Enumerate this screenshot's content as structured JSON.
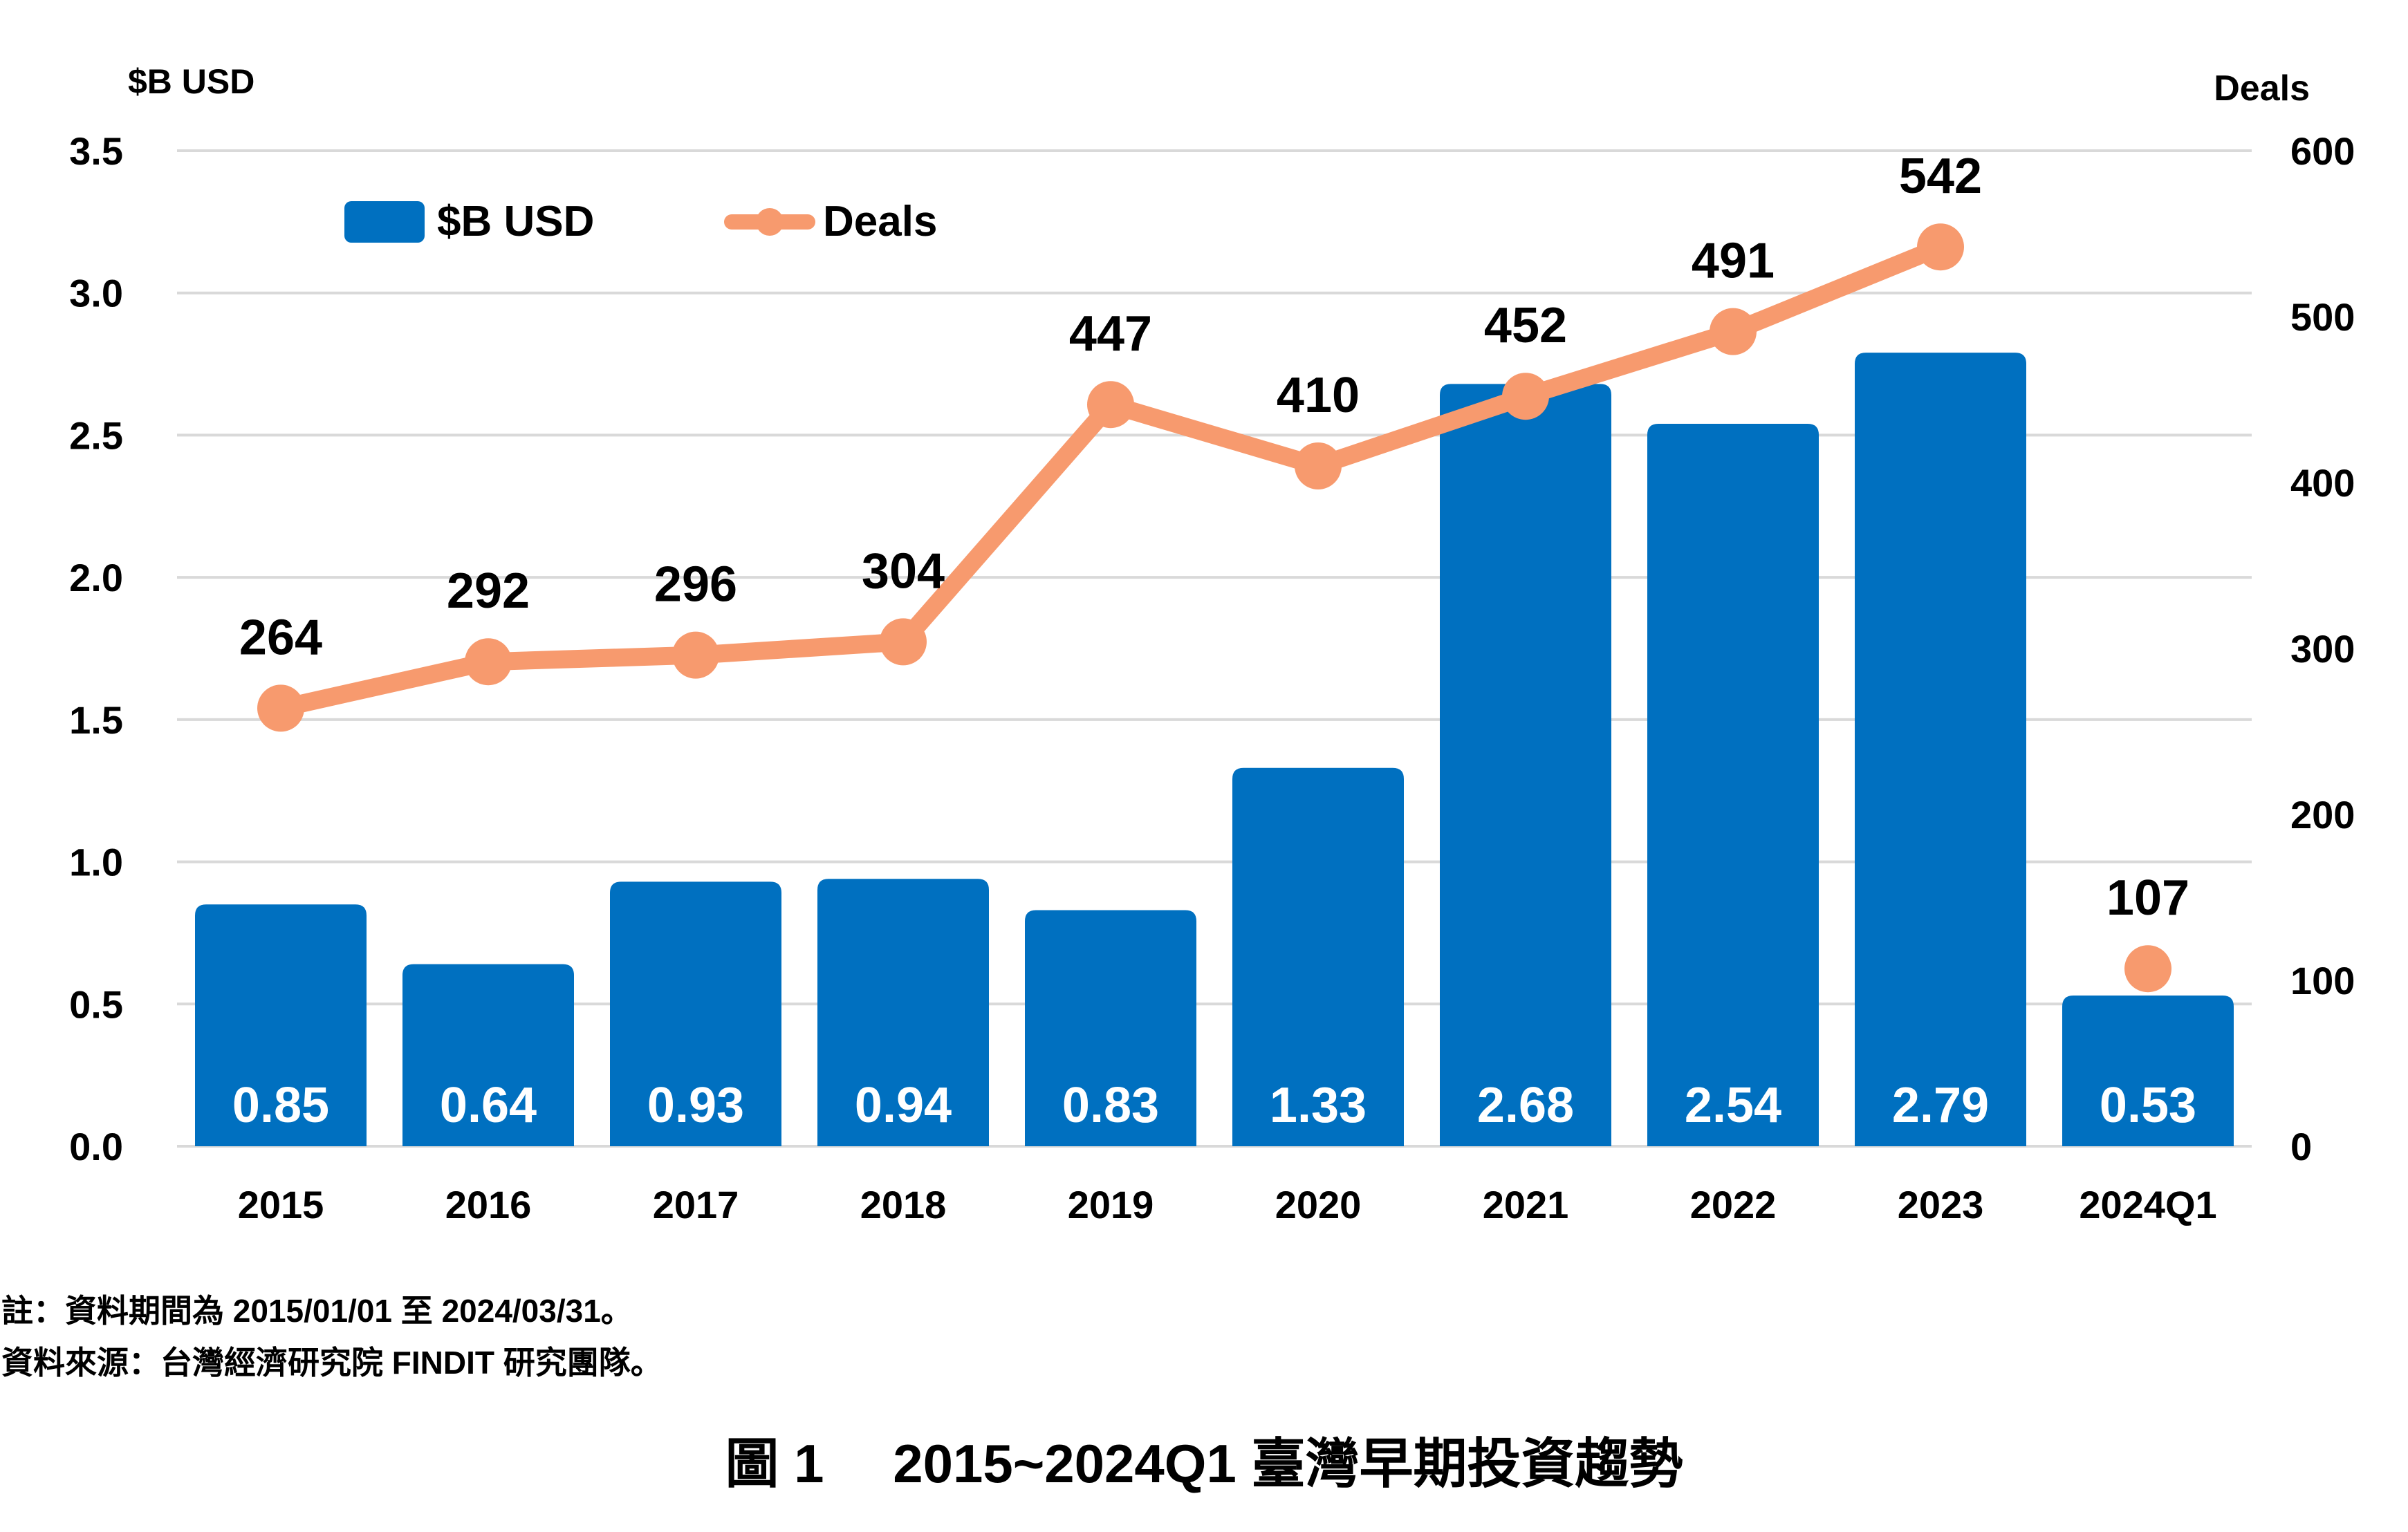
{
  "chart_data": {
    "type": "bar",
    "categories": [
      "2015",
      "2016",
      "2017",
      "2018",
      "2019",
      "2020",
      "2021",
      "2022",
      "2023",
      "2024Q1"
    ],
    "series": [
      {
        "name": "$B USD",
        "type": "bar",
        "axis": "left",
        "values": [
          0.85,
          0.64,
          0.93,
          0.94,
          0.83,
          1.33,
          2.68,
          2.54,
          2.79,
          0.53
        ],
        "labels": [
          "0.85",
          "0.64",
          "0.93",
          "0.94",
          "0.83",
          "1.33",
          "2.68",
          "2.54",
          "2.79",
          "0.53"
        ]
      },
      {
        "name": "Deals",
        "type": "line",
        "axis": "right",
        "values": [
          264,
          292,
          296,
          304,
          447,
          410,
          452,
          491,
          542,
          107
        ],
        "labels": [
          "264",
          "292",
          "296",
          "304",
          "447",
          "410",
          "452",
          "491",
          "542",
          "107"
        ],
        "connected_points": 9
      }
    ],
    "y_left": {
      "label": "$B USD",
      "range": [
        0,
        3.5
      ],
      "ticks": [
        "0.0",
        "0.5",
        "1.0",
        "1.5",
        "2.0",
        "2.5",
        "3.0",
        "3.5"
      ]
    },
    "y_right": {
      "label": "Deals",
      "range": [
        0,
        600
      ],
      "ticks": [
        "0",
        "100",
        "200",
        "300",
        "400",
        "500",
        "600"
      ]
    },
    "grid": true,
    "legend": "top-left",
    "colors": {
      "bar": "#0070C0",
      "line": "#F79A6E",
      "grid": "#D9D9D9"
    }
  },
  "notes": [
    "註：資料期間為 2015/01/01 至 2024/03/31。",
    "資料來源：台灣經濟研究院 FINDIT 研究團隊。"
  ],
  "caption": "圖 1　 2015~2024Q1 臺灣早期投資趨勢"
}
